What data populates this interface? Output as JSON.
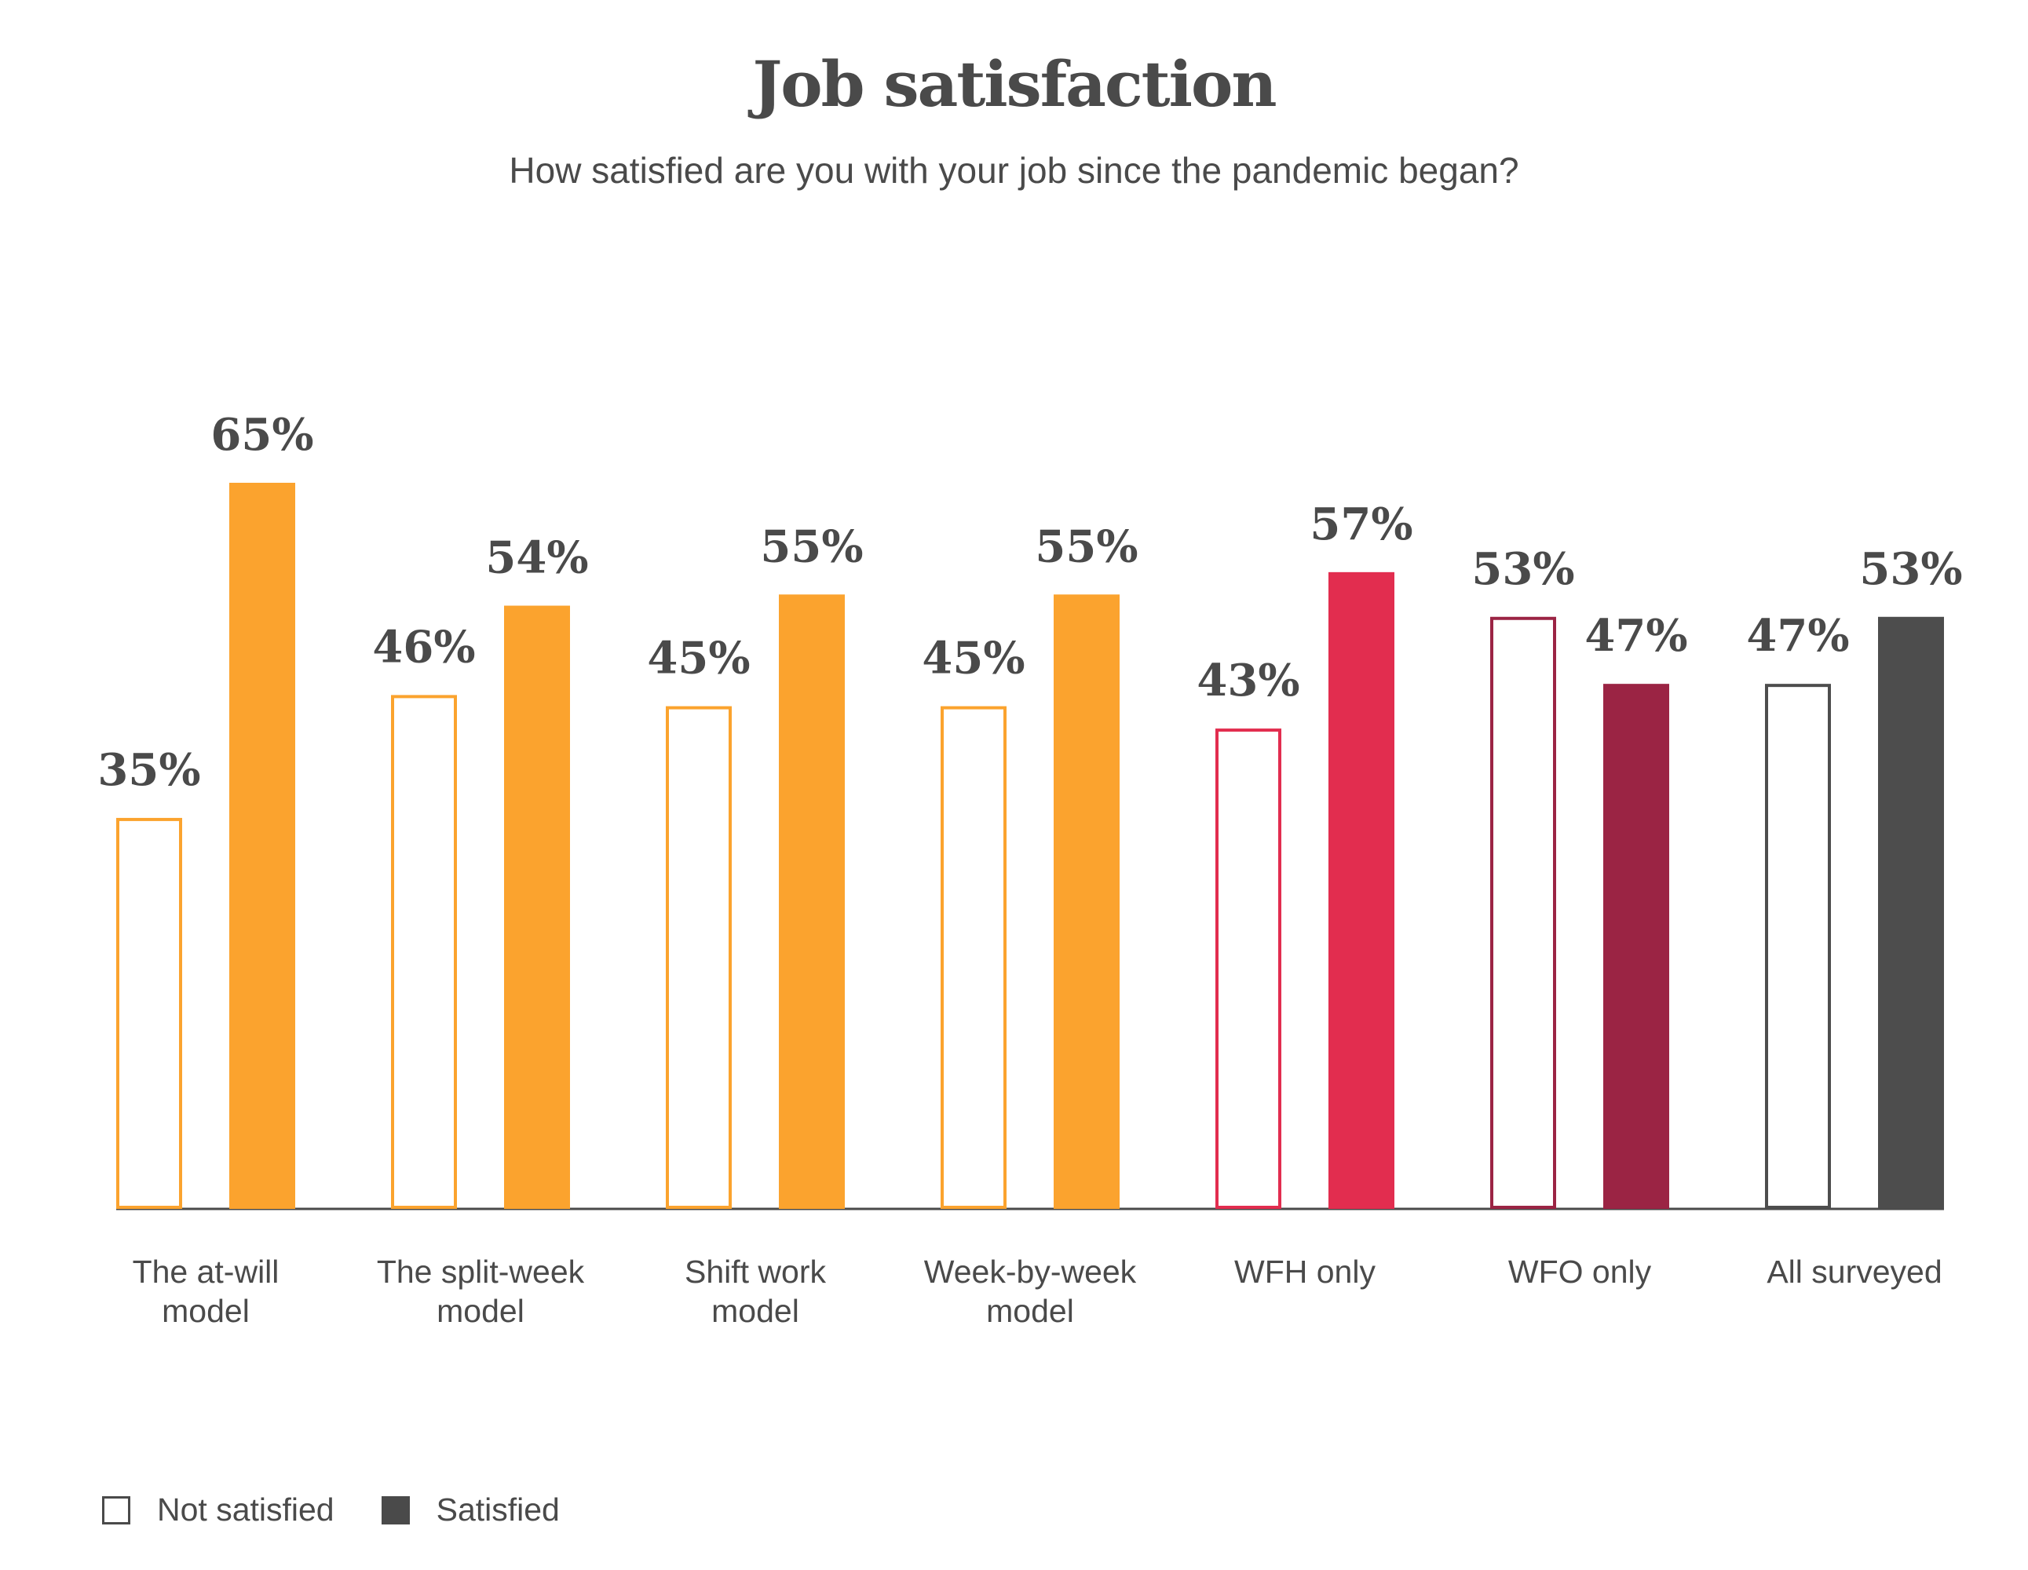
{
  "chart_data": {
    "type": "bar",
    "title": "Job satisfaction",
    "subtitle": "How satisfied are you with your job since the pandemic began?",
    "categories": [
      "The at-will model",
      "The split-week model",
      "Shift work model",
      "Week-by-week model",
      "WFH only",
      "WFO only",
      "All surveyed"
    ],
    "category_label_lines": [
      [
        "The at-will",
        "model"
      ],
      [
        "The split-week",
        "model"
      ],
      [
        "Shift work",
        "model"
      ],
      [
        "Week-by-week",
        "model"
      ],
      [
        "WFH only"
      ],
      [
        "WFO only"
      ],
      [
        "All surveyed"
      ]
    ],
    "series": [
      {
        "name": "Not satisfied",
        "values": [
          35,
          46,
          45,
          45,
          43,
          53,
          47
        ],
        "style": "outline"
      },
      {
        "name": "Satisfied",
        "values": [
          65,
          54,
          55,
          55,
          57,
          47,
          53
        ],
        "style": "filled"
      }
    ],
    "value_labels": {
      "Not satisfied": [
        "35%",
        "46%",
        "45%",
        "45%",
        "43%",
        "53%",
        "47%"
      ],
      "Satisfied": [
        "65%",
        "54%",
        "55%",
        "55%",
        "57%",
        "47%",
        "53%"
      ]
    },
    "category_colors": [
      "#fba32e",
      "#fba32e",
      "#fba32e",
      "#fba32e",
      "#e22d4f",
      "#9b2444",
      "#4d4d4d"
    ],
    "ylim": [
      0,
      65
    ],
    "grid": false,
    "legend_position": "bottom-left"
  },
  "legend": {
    "items": [
      {
        "label": "Not satisfied",
        "style": "outline"
      },
      {
        "label": "Satisfied",
        "style": "filled"
      }
    ]
  },
  "colors": {
    "text": "#4a4a4a",
    "axis": "#4a4a4a",
    "background": "#ffffff"
  }
}
